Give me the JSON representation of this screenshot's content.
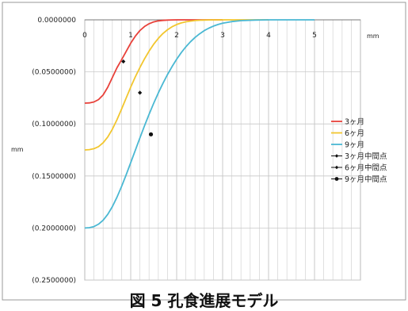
{
  "chart_data": {
    "type": "line",
    "title": "",
    "xlabel": "",
    "xunit": "mm",
    "yunit": "mm",
    "xlim": [
      0,
      5
    ],
    "ylim": [
      -0.25,
      0
    ],
    "x_ticks": [
      "0",
      "1",
      "2",
      "3",
      "4",
      "5"
    ],
    "y_ticks": [
      "0.0000000",
      "(0.0500000)",
      "(0.1000000)",
      "(0.1500000)",
      "(0.2000000)",
      "(0.2500000)"
    ],
    "grid": true,
    "legend_position": "right",
    "series": [
      {
        "name": "3ヶ月",
        "color": "#e8413a",
        "x": [
          0,
          0.1,
          0.2,
          0.3,
          0.4,
          0.5,
          0.6,
          0.7,
          0.8,
          0.9,
          1.0,
          1.1,
          1.2,
          1.3,
          1.4,
          1.5,
          1.6,
          1.7,
          1.8,
          1.9,
          2.0,
          2.2,
          2.5,
          3.0
        ],
        "y": [
          -0.08,
          -0.0798,
          -0.0789,
          -0.0766,
          -0.0721,
          -0.0648,
          -0.0554,
          -0.0461,
          -0.0384,
          -0.0304,
          -0.0224,
          -0.0157,
          -0.0103,
          -0.0064,
          -0.0037,
          -0.002,
          -0.001,
          -0.0005,
          -0.0002,
          -0.0001,
          0,
          0,
          0,
          0
        ]
      },
      {
        "name": "6ヶ月",
        "color": "#f2c62e",
        "x": [
          0,
          0.1,
          0.2,
          0.3,
          0.4,
          0.5,
          0.6,
          0.7,
          0.8,
          0.9,
          1.0,
          1.1,
          1.2,
          1.3,
          1.4,
          1.5,
          1.6,
          1.7,
          1.8,
          1.9,
          2.0,
          2.1,
          2.2,
          2.3,
          2.4,
          2.5,
          2.7,
          3.0,
          3.5,
          4.0
        ],
        "y": [
          -0.125,
          -0.1247,
          -0.1238,
          -0.1218,
          -0.1181,
          -0.1126,
          -0.1051,
          -0.096,
          -0.0858,
          -0.0752,
          -0.0646,
          -0.0548,
          -0.0458,
          -0.0375,
          -0.03,
          -0.0234,
          -0.0178,
          -0.0132,
          -0.0095,
          -0.0066,
          -0.0045,
          -0.003,
          -0.0019,
          -0.0012,
          -0.0007,
          -0.0004,
          -0.0001,
          0,
          0,
          0
        ]
      },
      {
        "name": "9ヶ月",
        "color": "#4ab8d3",
        "x": [
          0,
          0.1,
          0.2,
          0.3,
          0.4,
          0.5,
          0.6,
          0.7,
          0.8,
          0.9,
          1.0,
          1.1,
          1.2,
          1.3,
          1.4,
          1.5,
          1.6,
          1.7,
          1.8,
          1.9,
          2.0,
          2.1,
          2.2,
          2.3,
          2.4,
          2.5,
          2.6,
          2.7,
          2.8,
          2.9,
          3.0,
          3.2,
          3.4,
          3.7,
          4.0,
          4.5,
          5.0
        ],
        "y": [
          -0.2,
          -0.1997,
          -0.1986,
          -0.1963,
          -0.1925,
          -0.1869,
          -0.1795,
          -0.1705,
          -0.1602,
          -0.149,
          -0.1372,
          -0.1253,
          -0.1134,
          -0.1018,
          -0.0907,
          -0.0802,
          -0.0703,
          -0.0611,
          -0.0526,
          -0.0449,
          -0.0378,
          -0.0315,
          -0.0259,
          -0.0211,
          -0.0169,
          -0.0134,
          -0.0104,
          -0.008,
          -0.006,
          -0.0045,
          -0.0033,
          -0.0017,
          -0.0008,
          -0.0002,
          0,
          0,
          0
        ]
      },
      {
        "name": "3ヶ月中間点",
        "color": "#111111",
        "marker": "diamond-small",
        "x": [
          0.84
        ],
        "y": [
          -0.04
        ]
      },
      {
        "name": "6ヶ月中間点",
        "color": "#111111",
        "marker": "diamond-small",
        "x": [
          1.2
        ],
        "y": [
          -0.07
        ]
      },
      {
        "name": "9ヶ月中間点",
        "color": "#111111",
        "marker": "circle",
        "x": [
          1.44
        ],
        "y": [
          -0.11
        ]
      }
    ]
  },
  "caption": "図 5 孔食進展モデル"
}
